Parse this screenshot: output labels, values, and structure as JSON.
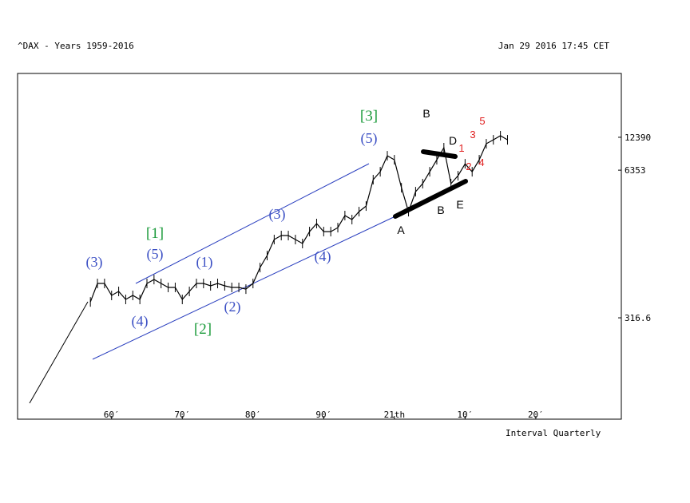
{
  "chart_data": {
    "type": "line",
    "title": "^DAX - Years 1959-2016",
    "timestamp": "Jan 29 2016 17:45 CET",
    "interval": "Interval Quarterly",
    "log_scale": true,
    "color": "#000000",
    "x": [
      1957,
      1958,
      1959,
      1960,
      1961,
      1962,
      1963,
      1964,
      1965,
      1966,
      1967,
      1968,
      1969,
      1970,
      1971,
      1972,
      1973,
      1974,
      1975,
      1976,
      1977,
      1978,
      1979,
      1980,
      1981,
      1982,
      1983,
      1984,
      1985,
      1986,
      1987,
      1988,
      1989,
      1990,
      1991,
      1992,
      1993,
      1994,
      1995,
      1996,
      1997,
      1998,
      1999,
      2000,
      2001,
      2002,
      2003,
      2004,
      2005,
      2006,
      2007,
      2008,
      2009,
      2010,
      2011,
      2012,
      2013,
      2014,
      2015,
      2016
    ],
    "values": [
      437,
      636,
      636,
      499,
      541,
      460,
      499,
      460,
      636,
      689,
      636,
      587,
      587,
      460,
      541,
      636,
      636,
      606,
      636,
      606,
      587,
      587,
      567,
      636,
      879,
      1122,
      1552,
      1683,
      1683,
      1552,
      1432,
      1824,
      2148,
      1824,
      1824,
      1977,
      2525,
      2328,
      2737,
      3065,
      5236,
      6152,
      8511,
      7852,
      4446,
      2737,
      4102,
      4831,
      6152,
      7852,
      10023,
      4831,
      5675,
      7230,
      6152,
      7852,
      10864,
      11776,
      12790,
      11776
    ],
    "xlim": [
      1946.7,
      2032.1
    ],
    "xticks": [
      {
        "value": 1960,
        "label": "60′"
      },
      {
        "value": 1970,
        "label": "70′"
      },
      {
        "value": 1980,
        "label": "80′"
      },
      {
        "value": 1990,
        "label": "90′"
      },
      {
        "value": 2000,
        "label": "21th"
      },
      {
        "value": 2010,
        "label": "10′"
      },
      {
        "value": 2020,
        "label": "20′"
      }
    ],
    "ylim": [
      40.4,
      45300
    ],
    "yticks": [
      316.6,
      6353,
      12390
    ],
    "annotations": [
      {
        "text": "(3)",
        "kind": "wave"
      },
      {
        "text": "(4)",
        "kind": "wave"
      },
      {
        "text": "[1]",
        "kind": "degree"
      },
      {
        "text": "(5)",
        "kind": "wave"
      },
      {
        "text": "(1)",
        "kind": "wave"
      },
      {
        "text": "[2]",
        "kind": "degree"
      },
      {
        "text": "(2)",
        "kind": "wave"
      },
      {
        "text": "(3)",
        "kind": "wave"
      },
      {
        "text": "(4)",
        "kind": "wave"
      },
      {
        "text": "[3]",
        "kind": "degree"
      },
      {
        "text": "(5)",
        "kind": "wave"
      },
      {
        "text": "B",
        "kind": "letter"
      },
      {
        "text": "A",
        "kind": "letter"
      },
      {
        "text": "D",
        "kind": "letter"
      },
      {
        "text": "B",
        "kind": "letter"
      },
      {
        "text": "E",
        "kind": "letter"
      },
      {
        "text": "1",
        "kind": "minor"
      },
      {
        "text": "2",
        "kind": "minor"
      },
      {
        "text": "3",
        "kind": "minor"
      },
      {
        "text": "4",
        "kind": "minor"
      },
      {
        "text": "5",
        "kind": "minor"
      }
    ]
  }
}
